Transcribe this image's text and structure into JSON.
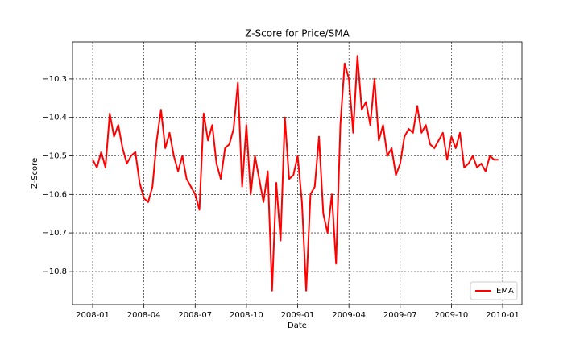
{
  "chart_data": {
    "type": "line",
    "title": "Z-Score for Price/SMA",
    "x_label": "Date",
    "y_label": "Z-Score",
    "x": [
      0,
      0.25,
      0.5,
      0.75,
      1,
      1.25,
      1.5,
      1.75,
      2,
      2.25,
      2.5,
      2.75,
      3,
      3.25,
      3.5,
      3.75,
      4,
      4.25,
      4.5,
      4.75,
      5,
      5.25,
      5.5,
      5.75,
      6,
      6.25,
      6.5,
      6.75,
      7,
      7.25,
      7.5,
      7.75,
      8,
      8.25,
      8.5,
      8.75,
      9,
      9.25,
      9.5,
      9.75,
      10,
      10.25,
      10.5,
      10.75,
      11,
      11.25,
      11.5,
      11.75,
      12,
      12.25,
      12.5,
      12.75,
      13,
      13.25,
      13.5,
      13.75,
      14,
      14.25,
      14.5,
      14.75,
      15,
      15.25,
      15.5,
      15.75,
      16,
      16.25,
      16.5,
      16.75,
      17,
      17.25,
      17.5,
      17.75,
      18,
      18.25,
      18.5,
      18.75,
      19,
      19.25,
      19.5,
      19.75,
      20,
      20.25,
      20.5,
      20.75,
      21,
      21.25,
      21.5,
      21.75,
      22,
      22.25,
      22.5,
      22.75,
      23,
      23.25,
      23.5,
      23.75
    ],
    "series": [
      {
        "name": "EMA",
        "color": "#ff0000",
        "values": [
          -10.51,
          -10.53,
          -10.49,
          -10.53,
          -10.39,
          -10.45,
          -10.42,
          -10.48,
          -10.52,
          -10.5,
          -10.49,
          -10.57,
          -10.61,
          -10.62,
          -10.58,
          -10.46,
          -10.38,
          -10.48,
          -10.44,
          -10.5,
          -10.54,
          -10.5,
          -10.56,
          -10.58,
          -10.6,
          -10.64,
          -10.39,
          -10.46,
          -10.42,
          -10.52,
          -10.56,
          -10.48,
          -10.47,
          -10.43,
          -10.31,
          -10.58,
          -10.42,
          -10.6,
          -10.5,
          -10.56,
          -10.62,
          -10.54,
          -10.85,
          -10.57,
          -10.72,
          -10.4,
          -10.56,
          -10.55,
          -10.5,
          -10.62,
          -10.85,
          -10.6,
          -10.58,
          -10.45,
          -10.65,
          -10.7,
          -10.6,
          -10.78,
          -10.42,
          -10.26,
          -10.3,
          -10.44,
          -10.24,
          -10.38,
          -10.36,
          -10.42,
          -10.3,
          -10.46,
          -10.42,
          -10.5,
          -10.48,
          -10.55,
          -10.52,
          -10.45,
          -10.43,
          -10.44,
          -10.37,
          -10.44,
          -10.42,
          -10.47,
          -10.48,
          -10.46,
          -10.44,
          -10.51,
          -10.45,
          -10.48,
          -10.44,
          -10.53,
          -10.52,
          -10.5,
          -10.53,
          -10.52,
          -10.54,
          -10.5,
          -10.51,
          -10.51
        ]
      }
    ],
    "xlim": [
      -1.18,
      25.13
    ],
    "xticks": [
      {
        "value": 0,
        "label": "2008-01"
      },
      {
        "value": 3,
        "label": "2008-04"
      },
      {
        "value": 6,
        "label": "2008-07"
      },
      {
        "value": 9,
        "label": "2008-10"
      },
      {
        "value": 12,
        "label": "2009-01"
      },
      {
        "value": 15,
        "label": "2009-04"
      },
      {
        "value": 18,
        "label": "2009-07"
      },
      {
        "value": 21,
        "label": "2009-10"
      },
      {
        "value": 24,
        "label": "2010-01"
      }
    ],
    "ylim": [
      -10.886,
      -10.204
    ],
    "yticks": [
      {
        "value": -10.8,
        "label": "−10.8"
      },
      {
        "value": -10.7,
        "label": "−10.7"
      },
      {
        "value": -10.6,
        "label": "−10.6"
      },
      {
        "value": -10.5,
        "label": "−10.5"
      },
      {
        "value": -10.4,
        "label": "−10.4"
      },
      {
        "value": -10.3,
        "label": "−10.3"
      }
    ],
    "grid": true,
    "legend_position": "lower right"
  }
}
